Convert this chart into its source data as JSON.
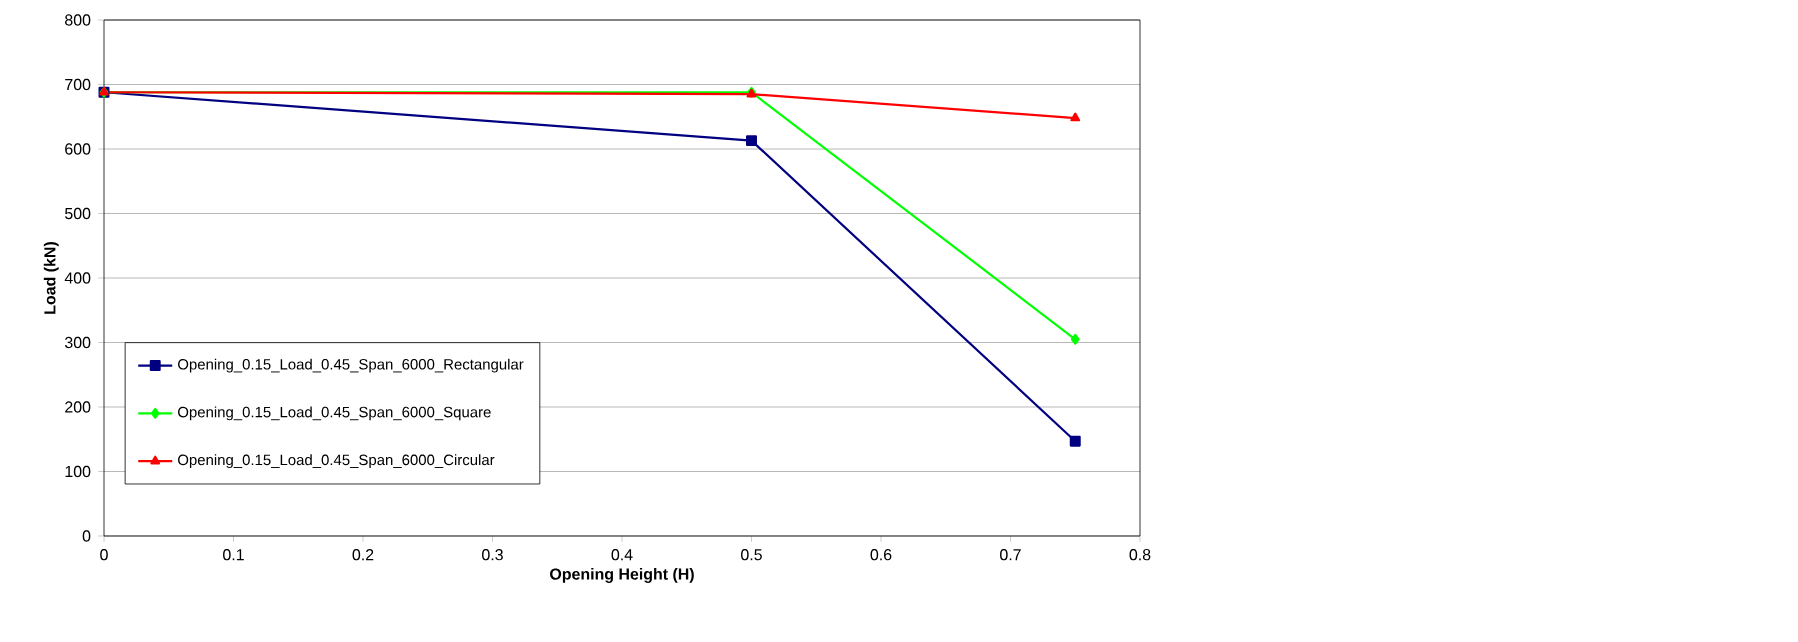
{
  "chart_data": {
    "type": "line",
    "xlabel": "Opening Height (H)",
    "ylabel": "Load (kN)",
    "x": [
      0,
      0.5,
      0.75
    ],
    "series": [
      {
        "name": "Opening_0.15_Load_0.45_Span_6000_Rectangular",
        "color": "#000080",
        "marker": "square",
        "values": [
          688,
          613,
          147
        ]
      },
      {
        "name": "Opening_0.15_Load_0.45_Span_6000_Square",
        "color": "#00ff00",
        "marker": "diamond",
        "values": [
          688,
          688,
          305
        ]
      },
      {
        "name": "Opening_0.15_Load_0.45_Span_6000_Circular",
        "color": "#ff0000",
        "marker": "triangle",
        "values": [
          688,
          685,
          648
        ]
      }
    ],
    "xlim": [
      0,
      0.8
    ],
    "xticks": [
      0,
      0.1,
      0.2,
      0.3,
      0.4,
      0.5,
      0.6,
      0.7,
      0.8
    ],
    "ylim": [
      0,
      800
    ],
    "yticks": [
      0,
      100,
      200,
      300,
      400,
      500,
      600,
      700,
      800
    ],
    "grid": "y",
    "legend": "bottom left",
    "line_style": "solid"
  }
}
